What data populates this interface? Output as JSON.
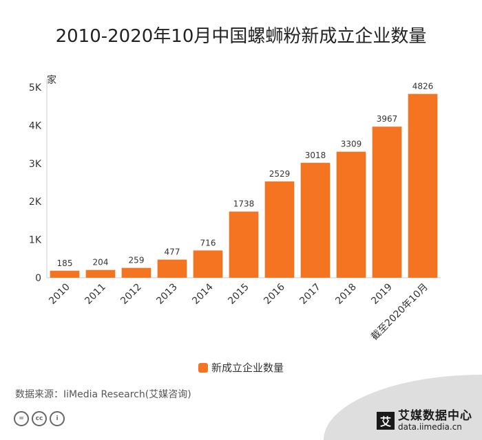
{
  "title": "2010-2020年10月中国螺蛳粉新成立企业数量",
  "chart_data": {
    "type": "bar",
    "categories": [
      "2010",
      "2011",
      "2012",
      "2013",
      "2014",
      "2015",
      "2016",
      "2017",
      "2018",
      "2019",
      "截至2020年10月"
    ],
    "series": [
      {
        "name": "新成立企业数量",
        "values": [
          185,
          204,
          259,
          477,
          716,
          1738,
          2529,
          3018,
          3309,
          3967,
          4826
        ]
      }
    ],
    "ylabel": "家",
    "ylim": [
      0,
      5000
    ],
    "yticks": [
      0,
      1000,
      2000,
      3000,
      4000,
      5000
    ],
    "ytick_labels": [
      "0",
      "1K",
      "2K",
      "3K",
      "4K",
      "5K"
    ],
    "color": "#F47421",
    "legend_position": "bottom-center",
    "grid": false
  },
  "legend": {
    "label": "新成立企业数量"
  },
  "source": "数据来源：IiMedia Research(艾媒咨询)",
  "brand": {
    "logo_glyph": "艾",
    "name": "艾媒数据中心",
    "url": "data.iimedia.cn"
  },
  "cc_icons": [
    "=",
    "cc",
    "i"
  ]
}
